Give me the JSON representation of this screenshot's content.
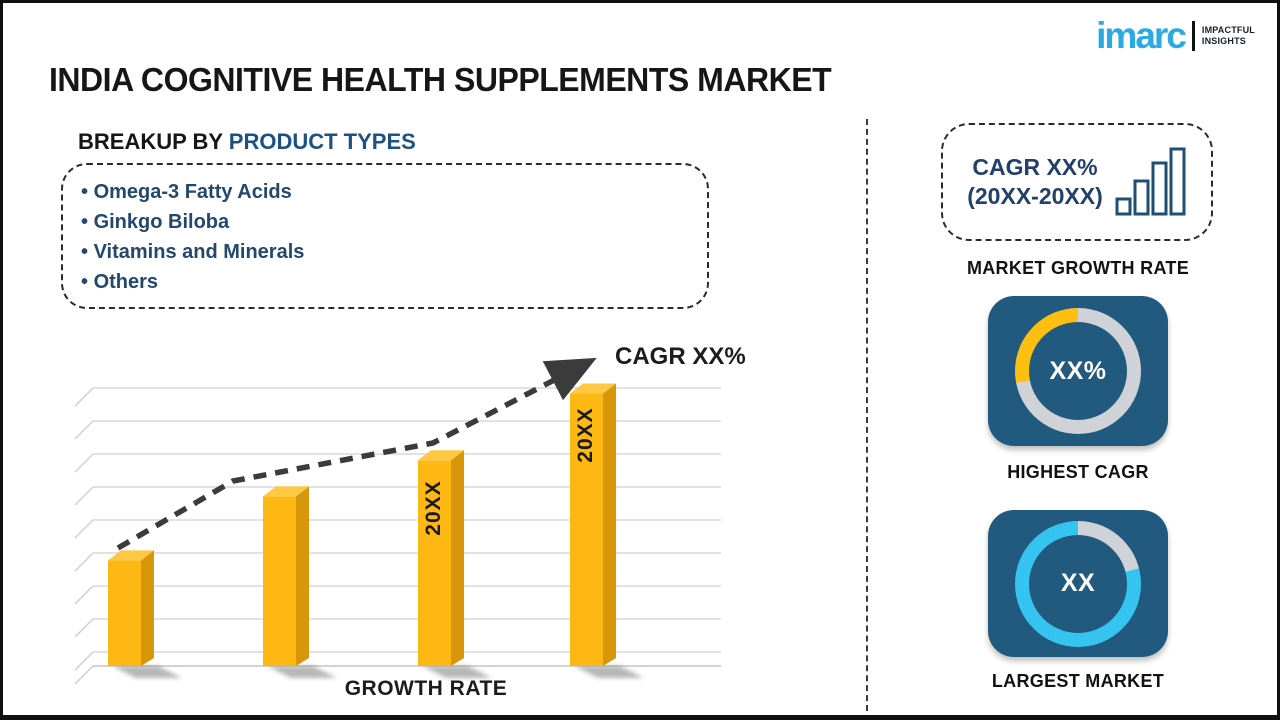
{
  "header": {
    "title": "INDIA COGNITIVE HEALTH SUPPLEMENTS MARKET",
    "logo": {
      "brand": "imarc",
      "tagline_line1": "IMPACTFUL",
      "tagline_line2": "INSIGHTS"
    }
  },
  "breakup": {
    "heading_prefix": "BREAKUP BY ",
    "heading_accent": "PRODUCT TYPES",
    "items": [
      "Omega-3 Fatty Acids",
      "Ginkgo Biloba",
      "Vitamins and Minerals",
      "Others"
    ]
  },
  "chart_data": {
    "type": "bar",
    "title": "",
    "xlabel": "GROWTH RATE",
    "ylabel": "",
    "categories": [
      "20XX",
      "20XX",
      "20XX",
      "20XX"
    ],
    "values": [
      38,
      61,
      74,
      98
    ],
    "value_note": "relative bar heights in percent of plot height; no numeric y-axis shown",
    "ylim": [
      0,
      100
    ],
    "bar_labels": [
      "",
      "",
      "20XX",
      "20XX"
    ],
    "bar_color": "#fdb813",
    "grid": true,
    "trend": {
      "label": "CAGR XX%",
      "style": "dashed-arrow-rising"
    }
  },
  "right_panel": {
    "cagr_box": {
      "line1": "CAGR XX%",
      "line2": "(20XX-20XX)",
      "icon": "growth-bars-icon"
    },
    "market_growth_label": "MARKET GROWTH RATE",
    "highest_cagr": {
      "value": "XX%",
      "label": "HIGHEST CAGR",
      "card_color": "#215a7e",
      "donut_segments": [
        {
          "color": "#cfd2d6",
          "from": 0,
          "to": 72
        },
        {
          "color": "#fdc010",
          "from": 72,
          "to": 100
        }
      ]
    },
    "largest_market": {
      "value": "XX",
      "label": "LARGEST MARKET",
      "card_color": "#215a7e",
      "donut_segments": [
        {
          "color": "#cfd2d6",
          "from": 0,
          "to": 21
        },
        {
          "color": "#35c4f0",
          "from": 21,
          "to": 100
        }
      ]
    }
  },
  "colors": {
    "accent_navy": "#23406b",
    "heading_accent_blue": "#1d5186",
    "text_dark": "#161616",
    "bar_front": "#fdb813",
    "bar_side": "#d8970a",
    "bar_top": "#fdc843",
    "logo_cyan": "#29aae2",
    "card_blue": "#215a7e",
    "donut_gray": "#cfd2d6",
    "donut_yellow": "#fdc010",
    "donut_cyan": "#35c4f0"
  }
}
